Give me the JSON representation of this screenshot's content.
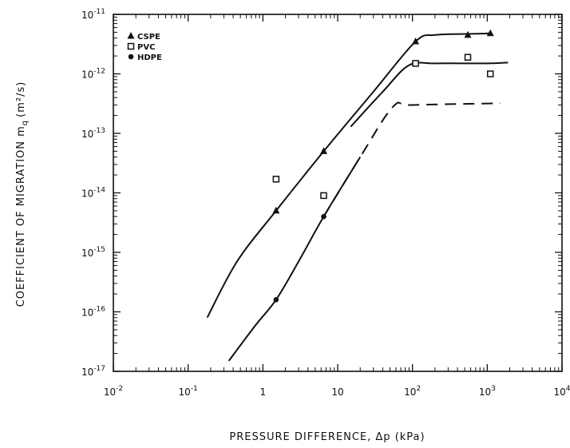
{
  "chart_data": {
    "type": "line",
    "xscale": "log",
    "yscale": "log",
    "xlim": [
      0.01,
      10000
    ],
    "ylim": [
      1e-17,
      1e-11
    ],
    "xlabel": "PRESSURE DIFFERENCE, Δp (kPa)",
    "ylabel": "COEFFICIENT OF MIGRATION m",
    "ylabel_sub": "q",
    "ylabel_units": "(m²/s)",
    "x_ticks": [
      {
        "value": 0.01,
        "base": "10",
        "exp": "-2"
      },
      {
        "value": 0.1,
        "base": "10",
        "exp": "-1"
      },
      {
        "value": 1,
        "base": "1",
        "exp": ""
      },
      {
        "value": 10,
        "base": "10",
        "exp": ""
      },
      {
        "value": 100,
        "base": "10",
        "exp": "2"
      },
      {
        "value": 1000,
        "base": "10",
        "exp": "3"
      },
      {
        "value": 10000,
        "base": "10",
        "exp": "4"
      }
    ],
    "y_ticks": [
      {
        "value": 1e-17,
        "base": "10",
        "exp": "-17"
      },
      {
        "value": 1e-16,
        "base": "10",
        "exp": "-16"
      },
      {
        "value": 1e-15,
        "base": "10",
        "exp": "-15"
      },
      {
        "value": 1e-14,
        "base": "10",
        "exp": "-14"
      },
      {
        "value": 1e-13,
        "base": "10",
        "exp": "-13"
      },
      {
        "value": 1e-12,
        "base": "10",
        "exp": "-12"
      },
      {
        "value": 1e-11,
        "base": "10",
        "exp": "-11"
      }
    ],
    "legend_position": "top-left",
    "series": [
      {
        "name": "CSPE",
        "marker": "triangle",
        "line": "solid",
        "points": [
          [
            1.5,
            5e-15
          ],
          [
            6.5,
            5e-14
          ],
          [
            110,
            3.5e-12
          ],
          [
            550,
            4.5e-12
          ],
          [
            1100,
            4.8e-12
          ]
        ],
        "curve": [
          [
            0.18,
            8e-17
          ],
          [
            0.45,
            7e-16
          ],
          [
            1.5,
            5e-15
          ],
          [
            6.5,
            5e-14
          ],
          [
            30,
            5e-13
          ],
          [
            110,
            3.5e-12
          ],
          [
            200,
            4.5e-12
          ],
          [
            600,
            4.7e-12
          ],
          [
            1100,
            4.8e-12
          ]
        ]
      },
      {
        "name": "PVC",
        "marker": "square",
        "line": "solid",
        "points": [
          [
            1.5,
            1.7e-14
          ],
          [
            6.5,
            9e-15
          ],
          [
            110,
            1.5e-12
          ],
          [
            550,
            1.9e-12
          ],
          [
            1100,
            1e-12
          ]
        ],
        "curve": [
          [
            15,
            1.3e-13
          ],
          [
            40,
            5e-13
          ],
          [
            90,
            1.4e-12
          ],
          [
            200,
            1.5e-12
          ],
          [
            1000,
            1.5e-12
          ],
          [
            1900,
            1.55e-12
          ]
        ]
      },
      {
        "name": "HDPE",
        "marker": "circle",
        "line": "dashed",
        "points": [
          [
            1.5,
            1.6e-16
          ],
          [
            6.5,
            4e-15
          ]
        ],
        "curve": [
          [
            0.35,
            1.5e-17
          ],
          [
            0.8,
            6e-17
          ],
          [
            1.5,
            1.6e-16
          ],
          [
            3,
            7e-16
          ],
          [
            6.5,
            4e-15
          ],
          [
            20,
            4e-14
          ],
          [
            55,
            2.8e-13
          ],
          [
            100,
            3e-13
          ],
          [
            1500,
            3.2e-13
          ]
        ],
        "dash_start_x": 8
      }
    ]
  }
}
